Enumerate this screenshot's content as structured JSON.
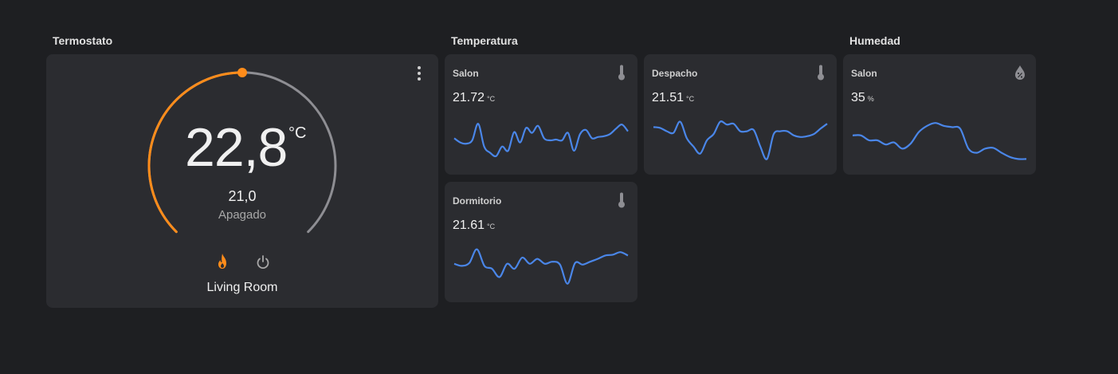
{
  "sections": {
    "thermostat": "Termostato",
    "temperature": "Temperatura",
    "humidity": "Humedad"
  },
  "thermostat": {
    "current_temp": "22,8",
    "unit": "°C",
    "target_temp": "21,0",
    "hvac_state": "Apagado",
    "name": "Living Room",
    "modes": [
      "heat",
      "off"
    ],
    "active_mode": "heat",
    "range": [
      7,
      35
    ],
    "target_value": 21.0
  },
  "temperature_cards": [
    {
      "name": "Salon",
      "value": "21.72",
      "unit": "°C",
      "icon": "thermometer-icon",
      "history": [
        0.55,
        0.45,
        0.42,
        0.5,
        0.9,
        0.35,
        0.2,
        0.12,
        0.35,
        0.25,
        0.7,
        0.45,
        0.8,
        0.68,
        0.85,
        0.55,
        0.5,
        0.52,
        0.5,
        0.68,
        0.25,
        0.65,
        0.75,
        0.55,
        0.58,
        0.6,
        0.65,
        0.78,
        0.88,
        0.72
      ]
    },
    {
      "name": "Despacho",
      "value": "21.51",
      "unit": "°C",
      "icon": "thermometer-icon",
      "history": [
        0.82,
        0.8,
        0.72,
        0.68,
        0.95,
        0.55,
        0.35,
        0.18,
        0.5,
        0.65,
        0.95,
        0.88,
        0.9,
        0.72,
        0.72,
        0.75,
        0.35,
        0.05,
        0.65,
        0.72,
        0.72,
        0.62,
        0.58,
        0.6,
        0.65,
        0.78,
        0.9
      ]
    },
    {
      "name": "Dormitorio",
      "value": "21.61",
      "unit": "°C",
      "icon": "thermometer-icon",
      "history": [
        0.6,
        0.55,
        0.62,
        0.95,
        0.55,
        0.48,
        0.28,
        0.6,
        0.48,
        0.75,
        0.6,
        0.72,
        0.6,
        0.65,
        0.58,
        0.12,
        0.62,
        0.58,
        0.65,
        0.72,
        0.8,
        0.82,
        0.88,
        0.8
      ]
    }
  ],
  "humidity_cards": [
    {
      "name": "Salon",
      "value": "35",
      "unit": "%",
      "icon": "water-percent-icon",
      "history": [
        0.62,
        0.62,
        0.5,
        0.5,
        0.4,
        0.45,
        0.3,
        0.42,
        0.7,
        0.85,
        0.92,
        0.85,
        0.82,
        0.78,
        0.3,
        0.2,
        0.3,
        0.32,
        0.2,
        0.1,
        0.05,
        0.05
      ]
    }
  ],
  "colors": {
    "background": "#1e1f22",
    "card": "#2b2c30",
    "accent_heat": "#ff8c1a",
    "track": "#8e8e93",
    "sparkline": "#4a86e8"
  }
}
